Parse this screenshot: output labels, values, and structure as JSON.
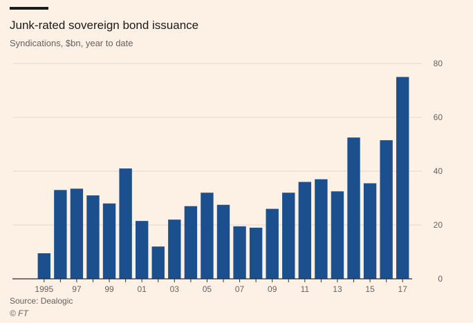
{
  "header": {
    "title": "Junk-rated sovereign bond issuance",
    "subtitle": "Syndications, $bn, year to date"
  },
  "footer": {
    "source": "Source: Dealogic",
    "credit": "© FT"
  },
  "colors": {
    "bar": "#1b4f8e",
    "grid": "#e3d8cd",
    "axis": "#2b2b2b",
    "tick_text": "#66605c",
    "background": "#fdf1e6"
  },
  "chart_data": {
    "type": "bar",
    "categories": [
      "1995",
      "1996",
      "1997",
      "1998",
      "1999",
      "2000",
      "2001",
      "2002",
      "2003",
      "2004",
      "2005",
      "2006",
      "2007",
      "2008",
      "2009",
      "2010",
      "2011",
      "2012",
      "2013",
      "2014",
      "2015",
      "2016",
      "2017"
    ],
    "values": [
      9.5,
      33,
      33.5,
      31,
      28,
      41,
      21.5,
      12,
      22,
      27,
      32,
      27.5,
      19.5,
      19,
      26,
      32,
      36,
      37,
      32.5,
      52.5,
      35.5,
      51.5,
      75
    ],
    "x_tick_labels": [
      "1995",
      "",
      "97",
      "",
      "99",
      "",
      "01",
      "",
      "03",
      "",
      "05",
      "",
      "07",
      "",
      "09",
      "",
      "11",
      "",
      "13",
      "",
      "15",
      "",
      "17"
    ],
    "ylim": [
      0,
      80
    ],
    "yticks": [
      0,
      20,
      40,
      60,
      80
    ],
    "y_axis_side": "right",
    "grid": true
  }
}
